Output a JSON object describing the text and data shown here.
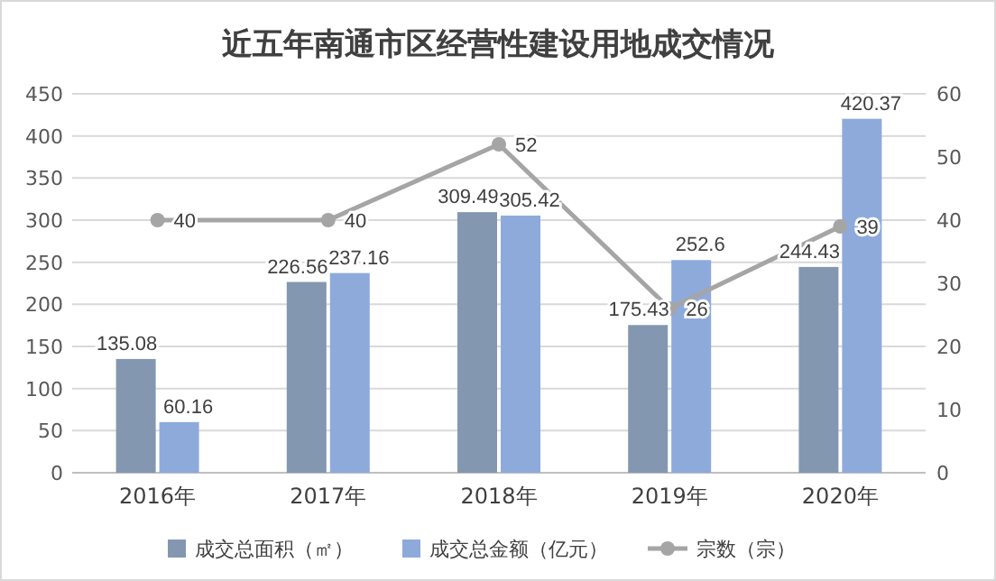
{
  "chart_data": {
    "type": "bar",
    "title": "近五年南通市区经营性建设用地成交情况",
    "categories": [
      "2016年",
      "2017年",
      "2018年",
      "2019年",
      "2020年"
    ],
    "series": [
      {
        "name": "成交总面积（㎡）",
        "color": "#8497b0",
        "values": [
          135.08,
          226.56,
          309.49,
          175.43,
          244.43
        ]
      },
      {
        "name": "成交总金额（亿元）",
        "color": "#8eaadb",
        "values": [
          60.16,
          237.16,
          305.42,
          252.6,
          420.37
        ]
      },
      {
        "name": "宗数（宗）",
        "type": "line",
        "axis": "y2",
        "color": "#a5a5a5",
        "marker": "circle",
        "values": [
          40,
          40,
          52,
          26,
          39
        ]
      }
    ],
    "ylim": [
      0,
      450
    ],
    "yticks": [
      0,
      50,
      100,
      150,
      200,
      250,
      300,
      350,
      400,
      450
    ],
    "y2lim": [
      0,
      60
    ],
    "y2ticks": [
      0,
      10,
      20,
      30,
      40,
      50,
      60
    ],
    "grid": "y",
    "legend": "bottom",
    "data_labels": true
  }
}
